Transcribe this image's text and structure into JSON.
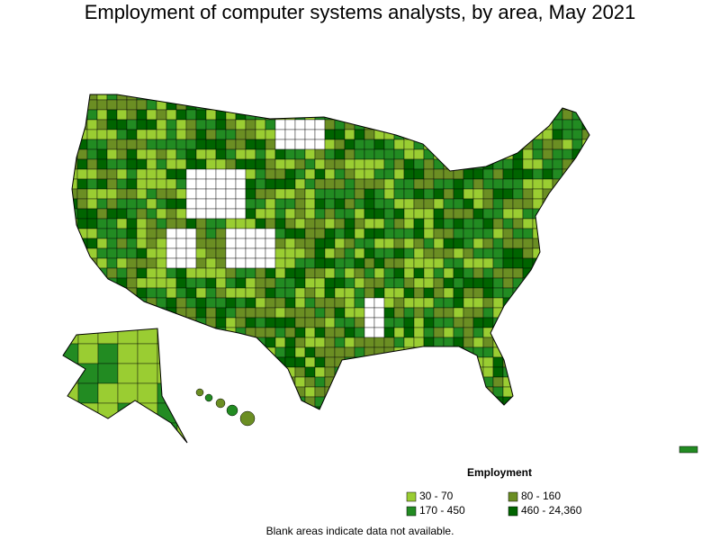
{
  "title": "Employment of computer systems analysts, by area, May 2021",
  "legend": {
    "title": "Employment",
    "items": [
      {
        "label": "30 - 70",
        "color": "#9acd32"
      },
      {
        "label": "80 - 160",
        "color": "#6b8e23"
      },
      {
        "label": "170 - 450",
        "color": "#228b22"
      },
      {
        "label": "460 - 24,360",
        "color": "#006400"
      }
    ]
  },
  "footnote": "Blank areas indicate data not available."
}
